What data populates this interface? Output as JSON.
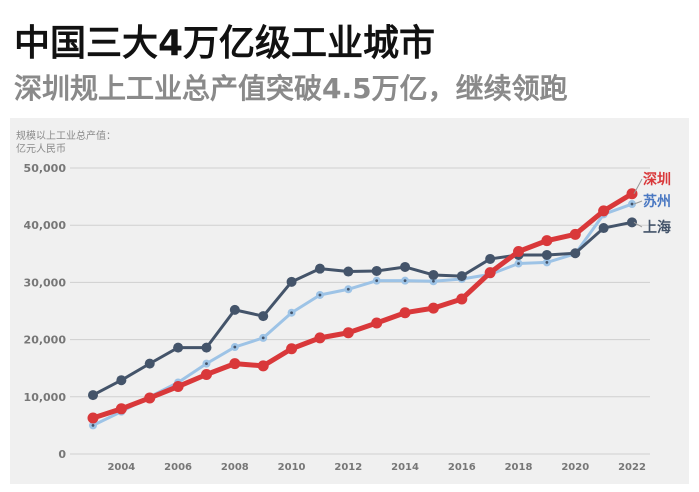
{
  "header": {
    "title": "中国三大4万亿级工业城市",
    "subtitle": "深圳规上工业总产值突破4.5万亿，继续领跑"
  },
  "chart_data": {
    "type": "line",
    "title": "中国三大4万亿级工业城市",
    "subtitle": "深圳规上工业总产值突破4.5万亿，继续领跑",
    "ylabel_line1": "规模以上工业总产值：",
    "ylabel_line2": "亿元人民币",
    "xlabel": "",
    "x": [
      2003,
      2004,
      2005,
      2006,
      2007,
      2008,
      2009,
      2010,
      2011,
      2012,
      2013,
      2014,
      2015,
      2016,
      2017,
      2018,
      2019,
      2020,
      2021,
      2022
    ],
    "xticks": [
      "2004",
      "2006",
      "2008",
      "2010",
      "2012",
      "2014",
      "2016",
      "2018",
      "2020",
      "2022"
    ],
    "yticks": [
      "0",
      "10,000",
      "20,000",
      "30,000",
      "40,000",
      "50,000"
    ],
    "ylim": [
      0,
      50000
    ],
    "grid": true,
    "series": [
      {
        "name": "深圳",
        "color": "#d9383a",
        "values": [
          6300,
          7900,
          9800,
          11800,
          13900,
          15800,
          15400,
          18400,
          20300,
          21200,
          22900,
          24700,
          25500,
          27100,
          31700,
          35400,
          37300,
          38400,
          42500,
          45500
        ]
      },
      {
        "name": "苏州",
        "color": "#9dc3e6",
        "values": [
          5000,
          7400,
          10000,
          12500,
          15800,
          18700,
          20300,
          24700,
          27800,
          28800,
          30300,
          30300,
          30200,
          30600,
          31400,
          33300,
          33500,
          35000,
          41900,
          43700
        ]
      },
      {
        "name": "上海",
        "color": "#44546a",
        "values": [
          10300,
          12900,
          15800,
          18600,
          18600,
          25200,
          24100,
          30100,
          32400,
          31900,
          32000,
          32700,
          31300,
          31100,
          34100,
          34800,
          34800,
          35100,
          39500,
          40500
        ]
      }
    ]
  }
}
